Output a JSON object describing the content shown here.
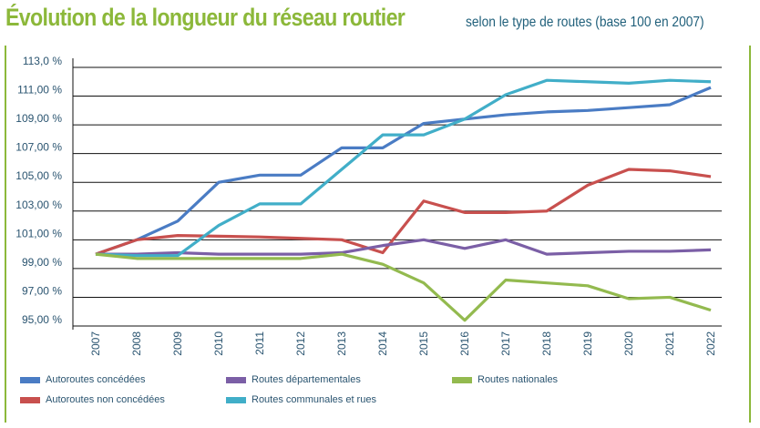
{
  "title": "Évolution de la longueur du réseau routier",
  "subtitle": "selon le type de routes (base 100 en 2007)",
  "chart_data": {
    "type": "line",
    "title": "Évolution de la longueur du réseau routier",
    "subtitle": "selon le type de routes (base 100 en 2007)",
    "x": [
      "2007",
      "2008",
      "2009",
      "2010",
      "2011",
      "2012",
      "2013",
      "2014",
      "2015",
      "2016",
      "2017",
      "2018",
      "2019",
      "2020",
      "2021",
      "2022"
    ],
    "y_ticks": [
      "113,0 %",
      "111,00 %",
      "109,00 %",
      "107,00 %",
      "105,00 %",
      "103,00 %",
      "101,00 %",
      "99,00 %",
      "97,00 %",
      "95,00 %"
    ],
    "y_tick_values": [
      113,
      111,
      109,
      107,
      105,
      103,
      101,
      99,
      97,
      95
    ],
    "ylim": [
      95,
      113
    ],
    "grid": true,
    "legend": "bottom",
    "series": [
      {
        "name": "Autoroutes concédées",
        "color": "#4a7cc4",
        "values": [
          100,
          101,
          102.3,
          105,
          105.5,
          105.5,
          107.4,
          107.4,
          109.1,
          109.4,
          109.7,
          109.9,
          110.0,
          110.2,
          110.4,
          111.6
        ]
      },
      {
        "name": "Autoroutes non concédées",
        "color": "#c8504e",
        "values": [
          100,
          101,
          101.3,
          101.25,
          101.2,
          101.1,
          101.0,
          100.1,
          103.7,
          102.9,
          102.9,
          103.0,
          104.8,
          105.9,
          105.8,
          105.4
        ]
      },
      {
        "name": "Routes départementales",
        "color": "#7b5fa6",
        "values": [
          100,
          100,
          100.1,
          100.0,
          100.0,
          100.0,
          100.1,
          100.6,
          101.0,
          100.4,
          101.0,
          100.0,
          100.1,
          100.2,
          100.2,
          100.3
        ]
      },
      {
        "name": "Routes communales et rues",
        "color": "#41aec8",
        "values": [
          100,
          99.9,
          99.9,
          102.0,
          103.5,
          103.5,
          105.9,
          108.3,
          108.3,
          109.4,
          111.1,
          112.1,
          112.0,
          111.9,
          112.1,
          112.0
        ]
      },
      {
        "name": "Routes nationales",
        "color": "#93ba4f",
        "values": [
          100,
          99.7,
          99.7,
          99.7,
          99.7,
          99.7,
          100.0,
          99.3,
          98.0,
          95.4,
          98.2,
          98.0,
          97.8,
          96.9,
          97.0,
          96.1
        ]
      }
    ]
  }
}
